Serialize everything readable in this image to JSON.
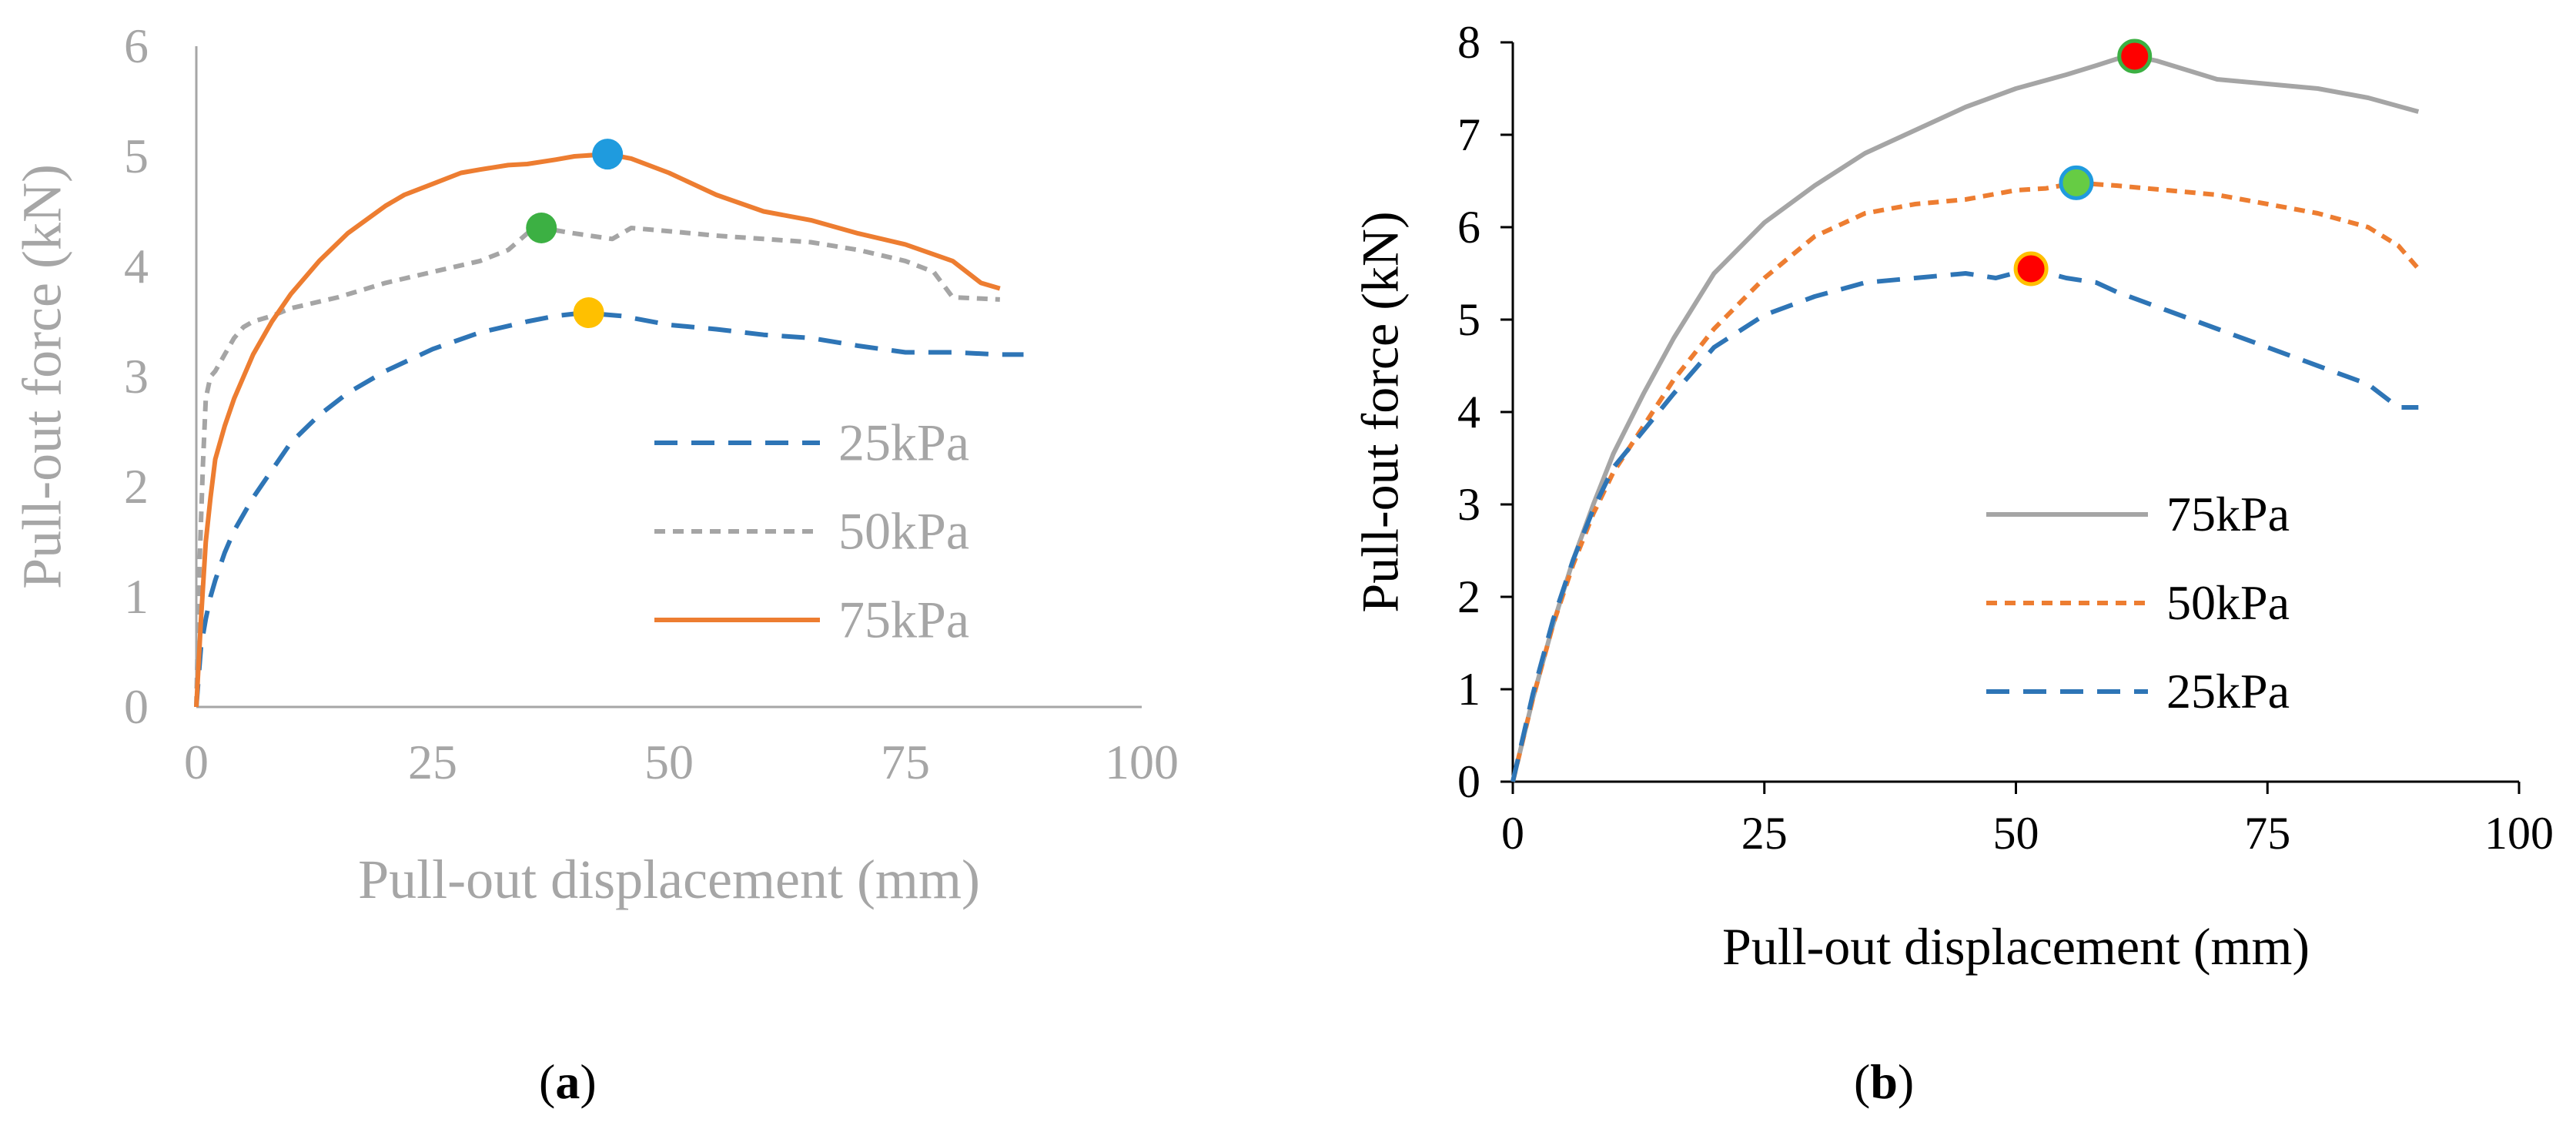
{
  "figure": {
    "panel_a_label": "a",
    "panel_b_label": "b"
  },
  "chart_data": [
    {
      "id": "a",
      "type": "line",
      "title": "",
      "xlabel": "Pull-out displacement (mm)",
      "ylabel": "Pull-out force (kN)",
      "xlim": [
        0,
        100
      ],
      "ylim": [
        0,
        6
      ],
      "xticks": [
        "0",
        "25",
        "50",
        "75",
        "100"
      ],
      "yticks": [
        "0",
        "1",
        "2",
        "3",
        "4",
        "5",
        "6"
      ],
      "axis_color": "#a6a6a6",
      "label_color": "#a6a6a6",
      "legend_position": "bottom-right",
      "series": [
        {
          "name": "25kPa",
          "color": "#2e75b6",
          "style": "long-dash",
          "x": [
            0,
            0.5,
            1,
            1.5,
            2,
            3,
            4,
            5,
            6,
            8,
            10,
            13,
            16,
            20,
            25,
            30,
            35,
            38,
            41,
            45,
            50,
            55,
            60,
            65,
            70,
            75,
            80,
            85,
            87.5
          ],
          "y": [
            0,
            0.55,
            0.8,
            1.0,
            1.15,
            1.4,
            1.6,
            1.75,
            1.9,
            2.15,
            2.4,
            2.65,
            2.85,
            3.05,
            3.25,
            3.4,
            3.5,
            3.55,
            3.58,
            3.55,
            3.47,
            3.43,
            3.38,
            3.35,
            3.28,
            3.22,
            3.22,
            3.2,
            3.2
          ]
        },
        {
          "name": "50kPa",
          "color": "#a5a5a5",
          "style": "short-dash",
          "x": [
            0,
            0.3,
            0.7,
            1,
            1.5,
            2,
            3,
            4,
            5,
            6,
            8,
            10,
            15,
            20,
            25,
            30,
            33,
            35,
            36.5,
            40,
            44,
            46,
            50,
            55,
            60,
            65,
            70,
            75,
            78,
            80,
            85
          ],
          "y": [
            0,
            1.2,
            2.2,
            2.8,
            3.0,
            3.05,
            3.2,
            3.35,
            3.45,
            3.5,
            3.55,
            3.62,
            3.72,
            3.85,
            3.95,
            4.05,
            4.15,
            4.3,
            4.35,
            4.3,
            4.25,
            4.35,
            4.32,
            4.28,
            4.25,
            4.22,
            4.15,
            4.05,
            3.95,
            3.72,
            3.7
          ]
        },
        {
          "name": "75kPa",
          "color": "#ed7d31",
          "style": "solid",
          "x": [
            0,
            0.5,
            1,
            1.5,
            2,
            3,
            4,
            5,
            6,
            8,
            10,
            13,
            16,
            20,
            22,
            25,
            28,
            30,
            33,
            35,
            38,
            40,
            43.5,
            46,
            50,
            55,
            60,
            65,
            70,
            75,
            80,
            83,
            85
          ],
          "y": [
            0,
            0.8,
            1.5,
            1.9,
            2.25,
            2.55,
            2.8,
            3.0,
            3.2,
            3.5,
            3.75,
            4.05,
            4.3,
            4.55,
            4.65,
            4.75,
            4.85,
            4.88,
            4.92,
            4.93,
            4.97,
            5.0,
            5.02,
            4.98,
            4.85,
            4.65,
            4.5,
            4.42,
            4.3,
            4.2,
            4.05,
            3.85,
            3.8
          ]
        }
      ],
      "peak_markers": [
        {
          "series": "75kPa",
          "x": 43.5,
          "y": 5.02,
          "color": "#1f9bde"
        },
        {
          "series": "50kPa",
          "x": 36.5,
          "y": 4.35,
          "color": "#3cb043"
        },
        {
          "series": "25kPa",
          "x": 41.5,
          "y": 3.58,
          "color": "#ffc000"
        }
      ]
    },
    {
      "id": "b",
      "type": "line",
      "title": "",
      "xlabel": "Pull-out displacement (mm)",
      "ylabel": "Pull-out force (kN)",
      "xlim": [
        0,
        100
      ],
      "ylim": [
        0,
        8
      ],
      "xticks": [
        "0",
        "25",
        "50",
        "75",
        "100"
      ],
      "yticks": [
        "0",
        "1",
        "2",
        "3",
        "4",
        "5",
        "6",
        "7",
        "8"
      ],
      "axis_color": "#000000",
      "label_color": "#000000",
      "legend_position": "bottom-right",
      "series": [
        {
          "name": "75kPa",
          "color": "#a5a5a5",
          "style": "solid",
          "x": [
            0,
            2,
            4,
            6,
            8,
            10,
            13,
            16,
            20,
            25,
            30,
            35,
            40,
            45,
            50,
            55,
            58,
            60,
            61.8,
            64,
            67,
            70,
            75,
            80,
            85,
            90
          ],
          "y": [
            0,
            0.9,
            1.7,
            2.4,
            3.0,
            3.55,
            4.2,
            4.8,
            5.5,
            6.05,
            6.45,
            6.8,
            7.05,
            7.3,
            7.5,
            7.65,
            7.75,
            7.82,
            7.85,
            7.8,
            7.7,
            7.6,
            7.55,
            7.5,
            7.4,
            7.25
          ]
        },
        {
          "name": "50kPa",
          "color": "#ed7d31",
          "style": "short-dash",
          "x": [
            0,
            2,
            4,
            6,
            8,
            10,
            13,
            16,
            20,
            25,
            30,
            35,
            40,
            45,
            50,
            53,
            56,
            60,
            65,
            70,
            75,
            80,
            85,
            88,
            90
          ],
          "y": [
            0,
            0.9,
            1.7,
            2.35,
            2.9,
            3.35,
            3.85,
            4.35,
            4.9,
            5.45,
            5.9,
            6.15,
            6.25,
            6.3,
            6.4,
            6.42,
            6.48,
            6.45,
            6.4,
            6.35,
            6.25,
            6.15,
            6.0,
            5.8,
            5.55
          ]
        },
        {
          "name": "25kPa",
          "color": "#2e75b6",
          "style": "long-dash",
          "x": [
            0,
            2,
            4,
            6,
            8,
            10,
            13,
            16,
            20,
            25,
            30,
            35,
            40,
            45,
            48,
            51.5,
            55,
            58,
            60,
            65,
            70,
            75,
            80,
            85,
            88,
            90
          ],
          "y": [
            0,
            0.95,
            1.75,
            2.4,
            2.95,
            3.4,
            3.8,
            4.2,
            4.7,
            5.05,
            5.25,
            5.4,
            5.45,
            5.5,
            5.45,
            5.55,
            5.45,
            5.4,
            5.3,
            5.1,
            4.9,
            4.7,
            4.5,
            4.3,
            4.05,
            4.05
          ]
        }
      ],
      "peak_markers": [
        {
          "series": "75kPa",
          "x": 61.8,
          "y": 7.85,
          "color": "#ff0000",
          "edge": "#3cb043"
        },
        {
          "series": "50kPa",
          "x": 56,
          "y": 6.48,
          "color": "#66cc44",
          "edge": "#1f9bde"
        },
        {
          "series": "25kPa",
          "x": 51.5,
          "y": 5.55,
          "color": "#ff0000",
          "edge": "#ffc000"
        }
      ]
    }
  ]
}
